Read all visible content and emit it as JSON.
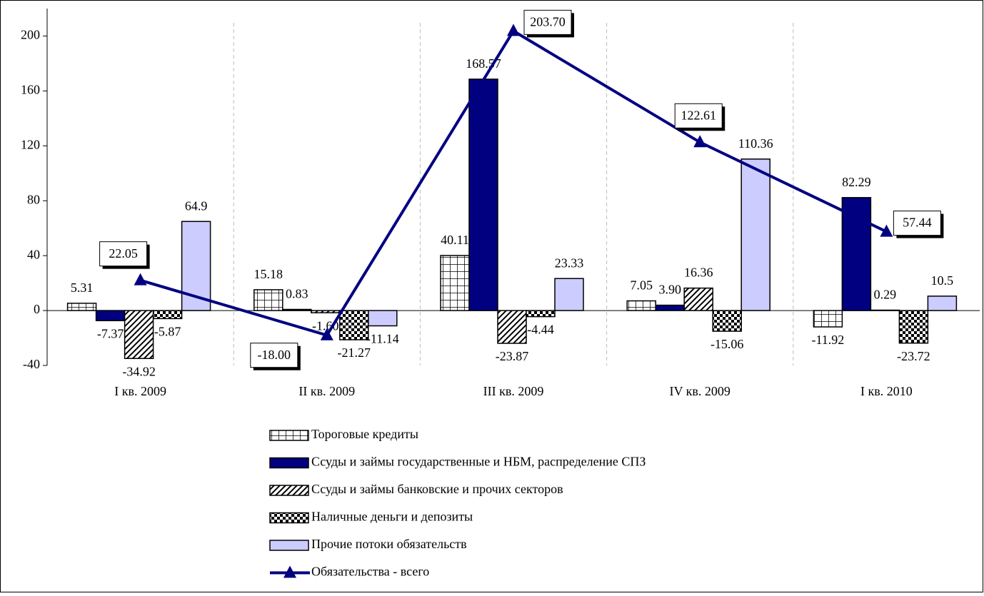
{
  "chart_data": {
    "type": "bar",
    "categories": [
      "I кв. 2009",
      "II кв. 2009",
      "III кв. 2009",
      "IV кв. 2009",
      "I кв. 2010"
    ],
    "ylim": [
      -40,
      220
    ],
    "yticks": [
      -40,
      0,
      40,
      80,
      120,
      160,
      200
    ],
    "grid": false,
    "series": [
      {
        "name": "Тороговые кредиты",
        "color": "#ffffff",
        "pattern": "grid",
        "values": [
          5.31,
          15.18,
          40.11,
          7.05,
          -11.92
        ],
        "value_labels": [
          "5.31",
          "15.18",
          "40.11",
          "7.05",
          "-11.92"
        ]
      },
      {
        "name": "Ссуды и займы государственные и НБМ, распределение СПЗ",
        "color": "#000080",
        "pattern": "solid",
        "values": [
          -7.37,
          0.83,
          168.57,
          3.9,
          82.29
        ],
        "value_labels": [
          "-7.37",
          "0.83",
          "168.57",
          "3.90",
          "82.29"
        ]
      },
      {
        "name": "Ссуды и займы банковские и прочих секторов",
        "color": "#ffffff",
        "pattern": "diagonal",
        "values": [
          -34.92,
          -1.6,
          -23.87,
          16.36,
          0.29
        ],
        "value_labels": [
          "-34.92",
          "-1.60",
          "-23.87",
          "16.36",
          "0.29"
        ]
      },
      {
        "name": "Наличные деньги и депозиты",
        "color": "#ffffff",
        "pattern": "checker",
        "values": [
          -5.87,
          -21.27,
          -4.44,
          -15.06,
          -23.72
        ],
        "value_labels": [
          "-5.87",
          "-21.27",
          "-4.44",
          "-15.06",
          "-23.72"
        ]
      },
      {
        "name": "Прочие потоки обязательств",
        "color": "#ccccff",
        "pattern": "solid",
        "values": [
          64.9,
          -11.14,
          23.33,
          110.36,
          10.5
        ],
        "value_labels": [
          "64.9",
          "-11.14",
          "23.33",
          "110.36",
          "10.5"
        ]
      },
      {
        "name": "Обязательства - всего",
        "color": "#000080",
        "type": "line",
        "values": [
          22.05,
          -18.0,
          203.7,
          122.61,
          57.44
        ],
        "value_labels": [
          "22.05",
          "-18.00",
          "203.70",
          "122.61",
          "57.44"
        ]
      }
    ]
  }
}
